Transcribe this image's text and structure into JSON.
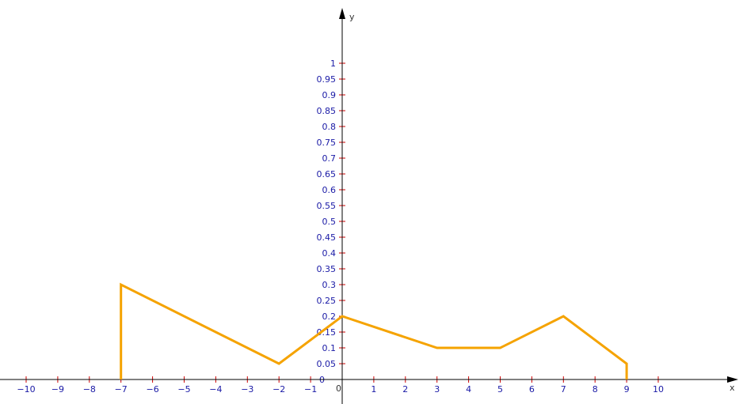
{
  "chart_data": {
    "type": "line",
    "title": "",
    "xlabel": "x",
    "ylabel": "y",
    "origin_label": "0",
    "xlim": [
      -10.8,
      12.5
    ],
    "ylim": [
      0,
      1
    ],
    "x_ticks": [
      -10,
      -9,
      -8,
      -7,
      -6,
      -5,
      -4,
      -3,
      -2,
      -1,
      1,
      2,
      3,
      4,
      5,
      6,
      7,
      8,
      9,
      10
    ],
    "x_tick_labels": [
      "−10",
      "−9",
      "−8",
      "−7",
      "−6",
      "−5",
      "−4",
      "−3",
      "−2",
      "−1",
      "1",
      "2",
      "3",
      "4",
      "5",
      "6",
      "7",
      "8",
      "9",
      "10"
    ],
    "y_ticks": [
      0.05,
      0.1,
      0.15,
      0.2,
      0.25,
      0.3,
      0.35,
      0.4,
      0.45,
      0.5,
      0.55,
      0.6,
      0.65,
      0.7,
      0.75,
      0.8,
      0.85,
      0.9,
      0.95,
      1
    ],
    "y_tick_labels": [
      "0.05",
      "0.1",
      "0.15",
      "0.2",
      "0.25",
      "0.3",
      "0.35",
      "0.4",
      "0.45",
      "0.5",
      "0.55",
      "0.6",
      "0.65",
      "0.7",
      "0.75",
      "0.8",
      "0.85",
      "0.9",
      "0.95",
      "1"
    ],
    "grid": false,
    "series": [
      {
        "color": "#f5a300",
        "points": [
          [
            -7,
            0
          ],
          [
            -7,
            0.3
          ],
          [
            -2,
            0.05
          ],
          [
            0,
            0.2
          ],
          [
            3,
            0.1
          ],
          [
            5,
            0.1
          ],
          [
            7,
            0.2
          ],
          [
            9,
            0.05
          ],
          [
            9,
            0
          ]
        ]
      }
    ],
    "colors": {
      "axis": "#000000",
      "tick": "#cc0000",
      "tick_label": "#1a1aa6",
      "series": "#f5a300"
    }
  }
}
